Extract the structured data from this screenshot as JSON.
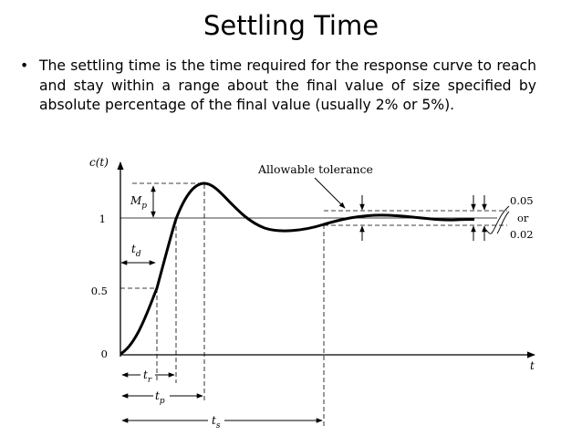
{
  "slide": {
    "title": "Settling Time",
    "bullet_symbol": "•",
    "bullet_text": "The settling time is the time required for the response curve to reach and stay within a range about the final value of size specified by absolute percentage of the final value (usually 2% or 5%)."
  },
  "diagram": {
    "y_axis_label": "c(t)",
    "x_axis_label": "t",
    "y_ticks": [
      {
        "label": "1",
        "value": 1
      },
      {
        "label": "0.5",
        "value": 0.5
      },
      {
        "label": "0",
        "value": 0
      }
    ],
    "annotation_allowable": "Allowable tolerance",
    "tolerance_labels": {
      "upper": "0.05",
      "middle": "or",
      "lower": "0.02"
    },
    "symbols": {
      "overshoot": "Mp",
      "delay_time": "td",
      "rise_time": "tr",
      "peak_time": "tp",
      "settling_time": "ts"
    }
  }
}
